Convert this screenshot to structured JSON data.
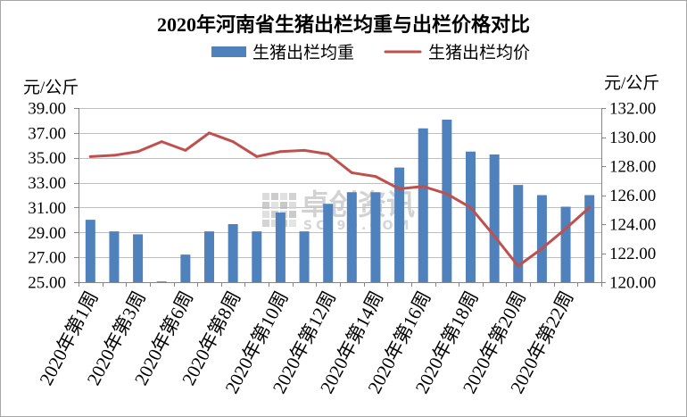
{
  "chart_data": {
    "type": "bar",
    "title": "2020年河南省生猪出栏均重与出栏价格对比",
    "categories": [
      "2020年第1周",
      "",
      "2020年第3周",
      "",
      "2020年第6周",
      "",
      "2020年第8周",
      "",
      "2020年第10周",
      "",
      "2020年第12周",
      "",
      "2020年第14周",
      "",
      "2020年第16周",
      "",
      "2020年第18周",
      "",
      "2020年第20周",
      "",
      "2020年第22周",
      ""
    ],
    "series": [
      {
        "name": "生猪出栏均重",
        "type": "bar",
        "axis": "right",
        "color": "#4f81bd",
        "values": [
          124.3,
          123.5,
          123.3,
          120.05,
          121.9,
          123.5,
          124.0,
          123.5,
          124.8,
          123.5,
          125.4,
          126.2,
          126.2,
          127.9,
          130.6,
          131.2,
          129.0,
          128.8,
          126.7,
          126.0,
          125.2,
          126.0
        ]
      },
      {
        "name": "生猪出栏均价",
        "type": "line",
        "axis": "left",
        "color": "#c0504d",
        "values": [
          35.1,
          35.2,
          35.5,
          36.3,
          35.6,
          37.0,
          36.3,
          35.1,
          35.5,
          35.6,
          35.3,
          33.8,
          33.5,
          32.5,
          32.7,
          32.1,
          31.0,
          28.7,
          26.3,
          27.7,
          29.3,
          31.0
        ]
      }
    ],
    "y_left": {
      "label": "元/公斤",
      "range": [
        25,
        39
      ],
      "ticks": [
        "25.00",
        "27.00",
        "29.00",
        "31.00",
        "33.00",
        "35.00",
        "37.00",
        "39.00"
      ]
    },
    "y_right": {
      "label": "元/公斤",
      "range": [
        120,
        132
      ],
      "ticks": [
        "120.00",
        "122.00",
        "124.00",
        "126.00",
        "128.00",
        "130.00",
        "132.00"
      ]
    },
    "grid": true,
    "legend": "top"
  },
  "watermark": {
    "brand": "卓创资讯",
    "site": "SCI99.COM"
  }
}
